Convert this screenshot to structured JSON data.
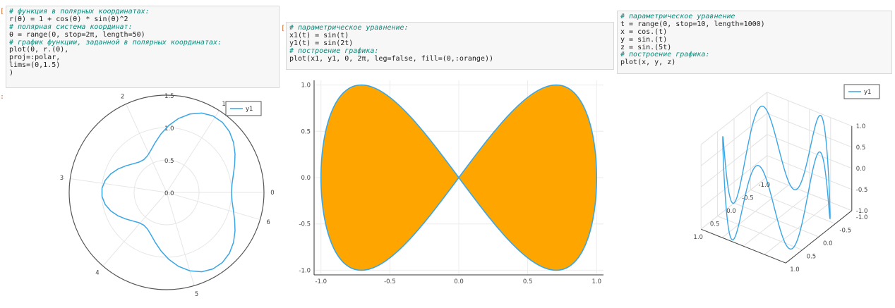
{
  "cells": [
    {
      "id": "polar",
      "lines": [
        {
          "type": "comment",
          "text": "# функция в полярных координатах:"
        },
        {
          "type": "code",
          "text": "r(θ) = 1 + cos(θ) * sin(θ)^2"
        },
        {
          "type": "comment",
          "text": "# полярная система координат:"
        },
        {
          "type": "code",
          "text": "θ = range(0, stop=2π, length=50)"
        },
        {
          "type": "comment",
          "text": "# график функции, заданной в полярных координатах:"
        },
        {
          "type": "code",
          "text": "plot(θ, r.(θ),"
        },
        {
          "type": "code",
          "text": "proj=:polar,"
        },
        {
          "type": "code",
          "text": "lims=(0,1.5)"
        },
        {
          "type": "code",
          "text": ")"
        }
      ]
    },
    {
      "id": "param2d",
      "lines": [
        {
          "type": "comment",
          "text": "# параметрическое уравнение:"
        },
        {
          "type": "code",
          "text": "x1(t) = sin(t)"
        },
        {
          "type": "code",
          "text": "y1(t) = sin(2t)"
        },
        {
          "type": "comment",
          "text": "# построение графика:"
        },
        {
          "type": "code",
          "text": "plot(x1, y1, 0, 2π, leg=false, fill=(0,:orange))"
        }
      ]
    },
    {
      "id": "param3d",
      "lines": [
        {
          "type": "comment",
          "text": "# параметрическое уравнение"
        },
        {
          "type": "code",
          "text": "t = range(0, stop=10, length=1000)"
        },
        {
          "type": "code",
          "text": "x = cos.(t)"
        },
        {
          "type": "code",
          "text": "y = sin.(t)"
        },
        {
          "type": "code",
          "text": "z = sin.(5t)"
        },
        {
          "type": "comment",
          "text": "# построение графика:"
        },
        {
          "type": "code",
          "text": "plot(x, y, z)"
        }
      ]
    }
  ],
  "prompts": [
    "[",
    ":",
    "[",
    ":",
    "["
  ],
  "chart_data": [
    {
      "type": "line",
      "projection": "polar",
      "function": "r(θ) = 1 + cos(θ) * sin(θ)^2",
      "theta_range": [
        0,
        6.283185307179586
      ],
      "n_points": 50,
      "rlim": [
        0,
        1.5
      ],
      "r_ticks": [
        "0.0",
        "0.5",
        "1.0",
        "1.5"
      ],
      "angle_ticks": [
        "0",
        "1",
        "2",
        "3",
        "4",
        "5",
        "6"
      ],
      "legend": [
        "y1"
      ],
      "legend_position": "top-right",
      "colors": {
        "line": "#3aa6e6",
        "frame": "#555555",
        "grid": "#e6e6e6"
      }
    },
    {
      "type": "area",
      "x_function": "sin(t)",
      "y_function": "sin(2t)",
      "t_range": [
        0,
        6.283185307179586
      ],
      "fill_to": 0,
      "xlim": [
        -1.05,
        1.05
      ],
      "ylim": [
        -1.05,
        1.05
      ],
      "x_ticks": [
        "-1.0",
        "-0.5",
        "0.0",
        "0.5",
        "1.0"
      ],
      "y_ticks": [
        "-1.0",
        "-0.5",
        "0.0",
        "0.5",
        "1.0"
      ],
      "legend": [],
      "colors": {
        "fill": "#ffa500",
        "line": "#3aa6e6",
        "grid": "#ececec"
      }
    },
    {
      "type": "line3d",
      "x_function": "cos.(t)",
      "y_function": "sin.(t)",
      "z_function": "sin.(5t)",
      "t_range": [
        0,
        10
      ],
      "n_points": 1000,
      "xlim": [
        -1,
        1
      ],
      "ylim": [
        -1,
        1
      ],
      "zlim": [
        -1,
        1
      ],
      "x_ticks": [
        "-1.0",
        "-0.5",
        "0.0",
        "0.5",
        "1.0"
      ],
      "y_ticks": [
        "-1.0",
        "-0.5",
        "0.0",
        "0.5",
        "1.0"
      ],
      "z_ticks": [
        "-1.0",
        "-0.5",
        "0.0",
        "0.5",
        "1.0"
      ],
      "legend": [
        "y1"
      ],
      "legend_position": "top-right",
      "colors": {
        "line": "#3aa6e6",
        "grid": "#e2e2e2"
      }
    }
  ]
}
